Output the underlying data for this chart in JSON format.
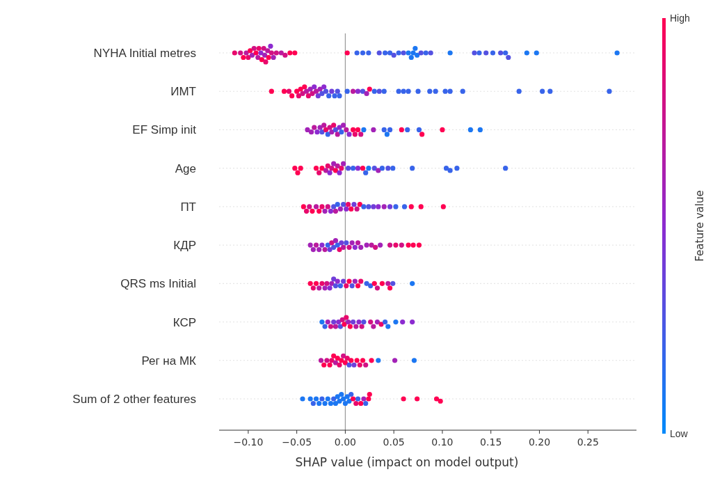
{
  "chart_data": {
    "type": "scatter",
    "orientation": "horizontal",
    "xlabel": "SHAP value (impact on model output)",
    "clabel": "Feature value",
    "categories": [
      "NYHA Initial metres",
      "ИМТ",
      "EF Simp init",
      "Age",
      "ПТ",
      "КДР",
      "QRS ms Initial",
      "КСР",
      "Рег на МК",
      "Sum of 2 other features"
    ],
    "xlim": [
      -0.13,
      0.3
    ],
    "xticks": [
      {
        "value": -0.1,
        "label": "−0.10"
      },
      {
        "value": -0.05,
        "label": "−0.05"
      },
      {
        "value": 0,
        "label": "0.00"
      },
      {
        "value": 0.05,
        "label": "0.05"
      },
      {
        "value": 0.1,
        "label": "0.10"
      },
      {
        "value": 0.15,
        "label": "0.15"
      },
      {
        "value": 0.2,
        "label": "0.20"
      },
      {
        "value": 0.25,
        "label": "0.25"
      }
    ],
    "ref_lines": [
      {
        "axis": "x",
        "value": 0,
        "color": "#999999"
      }
    ],
    "clim": [
      0,
      1
    ],
    "cticks": [
      {
        "value": 0,
        "label": "Low"
      },
      {
        "value": 1,
        "label": "High"
      }
    ],
    "grid": "y",
    "marker": "circle",
    "series": [
      {
        "x": [
          "NYHA Initial metres",
          "NYHA Initial metres",
          "NYHA Initial metres",
          "NYHA Initial metres",
          "NYHA Initial metres",
          "NYHA Initial metres",
          "NYHA Initial metres",
          "NYHA Initial metres",
          "NYHA Initial metres",
          "NYHA Initial metres",
          "NYHA Initial metres",
          "NYHA Initial metres",
          "NYHA Initial metres",
          "NYHA Initial metres",
          "NYHA Initial metres",
          "NYHA Initial metres",
          "NYHA Initial metres",
          "NYHA Initial metres",
          "NYHA Initial metres",
          "NYHA Initial metres",
          "NYHA Initial metres",
          "NYHA Initial metres",
          "NYHA Initial metres",
          "NYHA Initial metres",
          "NYHA Initial metres",
          "NYHA Initial metres",
          "NYHA Initial metres",
          "NYHA Initial metres",
          "NYHA Initial metres",
          "NYHA Initial metres",
          "NYHA Initial metres",
          "NYHA Initial metres",
          "NYHA Initial metres",
          "NYHA Initial metres",
          "NYHA Initial metres",
          "NYHA Initial metres",
          "NYHA Initial metres",
          "NYHA Initial metres",
          "NYHA Initial metres",
          "NYHA Initial metres",
          "NYHA Initial metres",
          "NYHA Initial metres",
          "NYHA Initial metres",
          "NYHA Initial metres",
          "NYHA Initial metres",
          "NYHA Initial metres",
          "NYHA Initial metres",
          "NYHA Initial metres",
          "NYHA Initial metres",
          "NYHA Initial metres",
          "NYHA Initial metres",
          "NYHA Initial metres",
          "NYHA Initial metres",
          "NYHA Initial metres",
          "NYHA Initial metres"
        ],
        "values": [
          -0.114,
          -0.108,
          -0.105,
          -0.102,
          -0.1,
          -0.098,
          -0.096,
          -0.094,
          -0.092,
          -0.09,
          -0.089,
          -0.087,
          -0.086,
          -0.084,
          -0.083,
          -0.082,
          -0.08,
          -0.079,
          -0.077,
          -0.076,
          -0.074,
          -0.071,
          -0.066,
          -0.062,
          -0.057,
          -0.052,
          0.002,
          0.012,
          0.018,
          0.024,
          0.035,
          0.041,
          0.046,
          0.05,
          0.055,
          0.06,
          0.065,
          0.068,
          0.07,
          0.072,
          0.074,
          0.078,
          0.083,
          0.088,
          0.108,
          0.133,
          0.138,
          0.145,
          0.152,
          0.16,
          0.165,
          0.168,
          0.187,
          0.197,
          0.28
        ],
        "colors": [
          "#e8096b",
          "#d11184",
          "#ff0052",
          "#ba1a9e",
          "#e8096b",
          "#ff0052",
          "#a322b7",
          "#d11184",
          "#ff0052",
          "#ba1a9e",
          "#e8096b",
          "#8c2bd0",
          "#ff0052",
          "#d11184",
          "#a322b7",
          "#e8096b",
          "#ba1a9e",
          "#ff0052",
          "#8c2bd0",
          "#d11184",
          "#a322b7",
          "#d11184",
          "#ba1a9e",
          "#d11184",
          "#ff0052",
          "#ff0052",
          "#ff0052",
          "#3864ea",
          "#3864ea",
          "#3864ea",
          "#5451e1",
          "#3864ea",
          "#3864ea",
          "#5451e1",
          "#3864ea",
          "#5451e1",
          "#1c77f2",
          "#1c77f2",
          "#1c77f2",
          "#1c77f2",
          "#1c77f2",
          "#5451e1",
          "#3864ea",
          "#5451e1",
          "#1c77f2",
          "#5451e1",
          "#3864ea",
          "#5451e1",
          "#3864ea",
          "#5451e1",
          "#3864ea",
          "#5451e1",
          "#1c77f2",
          "#1c77f2",
          "#1c77f2"
        ]
      },
      {
        "x": [
          "ИМТ",
          "ИМТ",
          "ИМТ",
          "ИМТ",
          "ИМТ",
          "ИМТ",
          "ИМТ",
          "ИМТ",
          "ИМТ",
          "ИМТ",
          "ИМТ",
          "ИМТ",
          "ИМТ",
          "ИМТ",
          "ИМТ",
          "ИМТ",
          "ИМТ",
          "ИМТ",
          "ИМТ",
          "ИМТ",
          "ИМТ",
          "ИМТ",
          "ИМТ",
          "ИМТ",
          "ИМТ",
          "ИМТ",
          "ИМТ",
          "ИМТ",
          "ИМТ",
          "ИМТ",
          "ИМТ",
          "ИМТ",
          "ИМТ",
          "ИМТ",
          "ИМТ",
          "ИМТ",
          "ИМТ",
          "ИМТ",
          "ИМТ",
          "ИМТ",
          "ИМТ",
          "ИМТ",
          "ИМТ",
          "ИМТ",
          "ИМТ",
          "ИМТ",
          "ИМТ"
        ],
        "values": [
          -0.076,
          -0.063,
          -0.058,
          -0.055,
          -0.05,
          -0.048,
          -0.046,
          -0.044,
          -0.042,
          -0.04,
          -0.038,
          -0.036,
          -0.034,
          -0.032,
          -0.03,
          -0.028,
          -0.026,
          -0.024,
          -0.022,
          -0.02,
          -0.017,
          -0.014,
          -0.011,
          -0.008,
          -0.006,
          0.002,
          0.008,
          0.013,
          0.018,
          0.022,
          0.025,
          0.03,
          0.035,
          0.04,
          0.055,
          0.06,
          0.065,
          0.075,
          0.087,
          0.093,
          0.103,
          0.108,
          0.121,
          0.179,
          0.203,
          0.211,
          0.272
        ],
        "colors": [
          "#ff0052",
          "#ff0052",
          "#e8096b",
          "#ff0052",
          "#ff0052",
          "#e8096b",
          "#ff0052",
          "#d11184",
          "#ff0052",
          "#ba1a9e",
          "#e8096b",
          "#a322b7",
          "#d11184",
          "#8c2bd0",
          "#ba1a9e",
          "#703ed9",
          "#a322b7",
          "#5451e1",
          "#8c2bd0",
          "#5451e1",
          "#3864ea",
          "#703ed9",
          "#3864ea",
          "#5451e1",
          "#3864ea",
          "#3864ea",
          "#ba1a9e",
          "#8c2bd0",
          "#5451e1",
          "#a322b7",
          "#ff0052",
          "#3864ea",
          "#5451e1",
          "#3864ea",
          "#3864ea",
          "#3864ea",
          "#3864ea",
          "#3864ea",
          "#3864ea",
          "#3864ea",
          "#3864ea",
          "#3864ea",
          "#3864ea",
          "#3864ea",
          "#3864ea",
          "#3864ea",
          "#3864ea"
        ]
      },
      {
        "x": [
          "EF Simp init",
          "EF Simp init",
          "EF Simp init",
          "EF Simp init",
          "EF Simp init",
          "EF Simp init",
          "EF Simp init",
          "EF Simp init",
          "EF Simp init",
          "EF Simp init",
          "EF Simp init",
          "EF Simp init",
          "EF Simp init",
          "EF Simp init",
          "EF Simp init",
          "EF Simp init",
          "EF Simp init",
          "EF Simp init",
          "EF Simp init",
          "EF Simp init",
          "EF Simp init",
          "EF Simp init",
          "EF Simp init",
          "EF Simp init",
          "EF Simp init",
          "EF Simp init",
          "EF Simp init",
          "EF Simp init",
          "EF Simp init",
          "EF Simp init",
          "EF Simp init",
          "EF Simp init",
          "EF Simp init",
          "EF Simp init",
          "EF Simp init"
        ],
        "values": [
          -0.039,
          -0.035,
          -0.032,
          -0.029,
          -0.026,
          -0.024,
          -0.022,
          -0.02,
          -0.018,
          -0.016,
          -0.014,
          -0.012,
          -0.01,
          -0.008,
          -0.006,
          -0.004,
          -0.002,
          0.001,
          0.004,
          0.008,
          0.01,
          0.013,
          0.016,
          0.019,
          0.029,
          0.04,
          0.043,
          0.046,
          0.058,
          0.064,
          0.076,
          0.079,
          0.1,
          0.129,
          0.139
        ],
        "colors": [
          "#a322b7",
          "#a322b7",
          "#ba1a9e",
          "#8c2bd0",
          "#a322b7",
          "#5451e1",
          "#ba1a9e",
          "#e8096b",
          "#3864ea",
          "#d11184",
          "#a322b7",
          "#e8096b",
          "#5451e1",
          "#ba1a9e",
          "#8c2bd0",
          "#3864ea",
          "#a322b7",
          "#ba1a9e",
          "#8c2bd0",
          "#ff0052",
          "#e8096b",
          "#ff0052",
          "#d11184",
          "#1c77f2",
          "#a322b7",
          "#3864ea",
          "#1c77f2",
          "#3864ea",
          "#ff0052",
          "#3864ea",
          "#3864ea",
          "#ff0052",
          "#ff0052",
          "#1c77f2",
          "#1c77f2"
        ]
      },
      {
        "x": [
          "Age",
          "Age",
          "Age",
          "Age",
          "Age",
          "Age",
          "Age",
          "Age",
          "Age",
          "Age",
          "Age",
          "Age",
          "Age",
          "Age",
          "Age",
          "Age",
          "Age",
          "Age",
          "Age",
          "Age",
          "Age",
          "Age",
          "Age",
          "Age",
          "Age",
          "Age",
          "Age",
          "Age",
          "Age",
          "Age",
          "Age",
          "Age"
        ],
        "values": [
          -0.052,
          -0.049,
          -0.046,
          -0.03,
          -0.027,
          -0.024,
          -0.02,
          -0.018,
          -0.016,
          -0.014,
          -0.012,
          -0.01,
          -0.008,
          -0.006,
          -0.004,
          -0.002,
          0.003,
          0.008,
          0.013,
          0.018,
          0.021,
          0.024,
          0.03,
          0.034,
          0.038,
          0.044,
          0.049,
          0.069,
          0.104,
          0.108,
          0.115,
          0.165
        ],
        "colors": [
          "#ff0052",
          "#ff0052",
          "#ff0052",
          "#ff0052",
          "#e8096b",
          "#ff0052",
          "#ba1a9e",
          "#e8096b",
          "#8c2bd0",
          "#d11184",
          "#a322b7",
          "#ff0052",
          "#ba1a9e",
          "#8c2bd0",
          "#e8096b",
          "#a322b7",
          "#5451e1",
          "#3864ea",
          "#8c2bd0",
          "#ff0052",
          "#3864ea",
          "#1c77f2",
          "#5451e1",
          "#a322b7",
          "#3864ea",
          "#5451e1",
          "#3864ea",
          "#3864ea",
          "#3864ea",
          "#3864ea",
          "#3864ea",
          "#3864ea"
        ]
      },
      {
        "x": [
          "ПТ",
          "ПТ",
          "ПТ",
          "ПТ",
          "ПТ",
          "ПТ",
          "ПТ",
          "ПТ",
          "ПТ",
          "ПТ",
          "ПТ",
          "ПТ",
          "ПТ",
          "ПТ",
          "ПТ",
          "ПТ",
          "ПТ",
          "ПТ",
          "ПТ",
          "ПТ",
          "ПТ",
          "ПТ",
          "ПТ",
          "ПТ",
          "ПТ",
          "ПТ",
          "ПТ",
          "ПТ",
          "ПТ",
          "ПТ",
          "ПТ",
          "ПТ"
        ],
        "values": [
          -0.043,
          -0.04,
          -0.037,
          -0.034,
          -0.03,
          -0.027,
          -0.024,
          -0.021,
          -0.018,
          -0.015,
          -0.012,
          -0.01,
          -0.008,
          -0.005,
          -0.002,
          0.001,
          0.003,
          0.006,
          0.009,
          0.012,
          0.015,
          0.019,
          0.024,
          0.029,
          0.034,
          0.04,
          0.046,
          0.052,
          0.061,
          0.068,
          0.078,
          0.101
        ],
        "colors": [
          "#ff0052",
          "#e8096b",
          "#d11184",
          "#ff0052",
          "#ba1a9e",
          "#ff0052",
          "#e8096b",
          "#a322b7",
          "#d11184",
          "#8c2bd0",
          "#5451e1",
          "#ba1a9e",
          "#3864ea",
          "#a322b7",
          "#5451e1",
          "#8c2bd0",
          "#e8096b",
          "#ff0052",
          "#703ed9",
          "#d11184",
          "#ff0052",
          "#3864ea",
          "#5451e1",
          "#703ed9",
          "#8c2bd0",
          "#a322b7",
          "#703ed9",
          "#3864ea",
          "#3864ea",
          "#ff0052",
          "#ff0052",
          "#ff0052"
        ]
      },
      {
        "x": [
          "КДР",
          "КДР",
          "КДР",
          "КДР",
          "КДР",
          "КДР",
          "КДР",
          "КДР",
          "КДР",
          "КДР",
          "КДР",
          "КДР",
          "КДР",
          "КДР",
          "КДР",
          "КДР",
          "КДР",
          "КДР",
          "КДР",
          "КДР",
          "КДР",
          "КДР",
          "КДР",
          "КДР",
          "КДР",
          "КДР",
          "КДР",
          "КДР",
          "КДР",
          "КДР",
          "КДР"
        ],
        "values": [
          -0.036,
          -0.033,
          -0.03,
          -0.027,
          -0.024,
          -0.021,
          -0.018,
          -0.016,
          -0.014,
          -0.012,
          -0.01,
          -0.008,
          -0.006,
          -0.004,
          -0.002,
          0.001,
          0.004,
          0.007,
          0.01,
          0.013,
          0.016,
          0.022,
          0.027,
          0.031,
          0.036,
          0.046,
          0.052,
          0.058,
          0.065,
          0.07,
          0.076
        ],
        "colors": [
          "#a322b7",
          "#a322b7",
          "#ba1a9e",
          "#a322b7",
          "#8c2bd0",
          "#ba1a9e",
          "#3864ea",
          "#703ed9",
          "#d11184",
          "#5451e1",
          "#a322b7",
          "#3864ea",
          "#e8096b",
          "#703ed9",
          "#ba1a9e",
          "#5451e1",
          "#d11184",
          "#a322b7",
          "#8c2bd0",
          "#ba1a9e",
          "#a322b7",
          "#a322b7",
          "#ba1a9e",
          "#d11184",
          "#a322b7",
          "#d11184",
          "#e8096b",
          "#d11184",
          "#ff0052",
          "#ff0052",
          "#ff0052"
        ]
      },
      {
        "x": [
          "QRS ms Initial",
          "QRS ms Initial",
          "QRS ms Initial",
          "QRS ms Initial",
          "QRS ms Initial",
          "QRS ms Initial",
          "QRS ms Initial",
          "QRS ms Initial",
          "QRS ms Initial",
          "QRS ms Initial",
          "QRS ms Initial",
          "QRS ms Initial",
          "QRS ms Initial",
          "QRS ms Initial",
          "QRS ms Initial",
          "QRS ms Initial",
          "QRS ms Initial",
          "QRS ms Initial",
          "QRS ms Initial",
          "QRS ms Initial",
          "QRS ms Initial",
          "QRS ms Initial",
          "QRS ms Initial",
          "QRS ms Initial",
          "QRS ms Initial",
          "QRS ms Initial",
          "QRS ms Initial",
          "QRS ms Initial",
          "QRS ms Initial"
        ],
        "values": [
          -0.036,
          -0.033,
          -0.03,
          -0.027,
          -0.024,
          -0.021,
          -0.019,
          -0.016,
          -0.014,
          -0.012,
          -0.01,
          -0.008,
          -0.005,
          -0.002,
          0.001,
          0.004,
          0.007,
          0.01,
          0.013,
          0.016,
          0.022,
          0.026,
          0.03,
          0.033,
          0.038,
          0.044,
          0.046,
          0.049,
          0.069
        ],
        "colors": [
          "#ff0052",
          "#e8096b",
          "#ff0052",
          "#ba1a9e",
          "#e8096b",
          "#a322b7",
          "#d11184",
          "#8c2bd0",
          "#a322b7",
          "#703ed9",
          "#5451e1",
          "#8c2bd0",
          "#3864ea",
          "#703ed9",
          "#e8096b",
          "#ff0052",
          "#5451e1",
          "#a322b7",
          "#ff0052",
          "#e8096b",
          "#3864ea",
          "#3864ea",
          "#ff0052",
          "#d11184",
          "#ff0052",
          "#ba1a9e",
          "#ff0052",
          "#5451e1",
          "#1c77f2"
        ]
      },
      {
        "x": [
          "КСР",
          "КСР",
          "КСР",
          "КСР",
          "КСР",
          "КСР",
          "КСР",
          "КСР",
          "КСР",
          "КСР",
          "КСР",
          "КСР",
          "КСР",
          "КСР",
          "КСР",
          "КСР",
          "КСР",
          "КСР",
          "КСР",
          "КСР",
          "КСР",
          "КСР",
          "КСР",
          "КСР",
          "КСР",
          "КСР",
          "КСР"
        ],
        "values": [
          -0.024,
          -0.021,
          -0.018,
          -0.015,
          -0.012,
          -0.01,
          -0.007,
          -0.005,
          -0.003,
          -0.001,
          0.001,
          0.003,
          0.005,
          0.008,
          0.011,
          0.014,
          0.017,
          0.019,
          0.026,
          0.029,
          0.033,
          0.037,
          0.041,
          0.044,
          0.052,
          0.059,
          0.069
        ],
        "colors": [
          "#1c77f2",
          "#3864ea",
          "#a322b7",
          "#d11184",
          "#703ed9",
          "#ba1a9e",
          "#8c2bd0",
          "#5451e1",
          "#d11184",
          "#ff0052",
          "#e8096b",
          "#a322b7",
          "#ff0052",
          "#703ed9",
          "#ba1a9e",
          "#8c2bd0",
          "#d11184",
          "#5451e1",
          "#d11184",
          "#ba1a9e",
          "#a322b7",
          "#e8096b",
          "#3864ea",
          "#1c77f2",
          "#1c77f2",
          "#8c2bd0",
          "#8c2bd0"
        ]
      },
      {
        "x": [
          "Рег на МК",
          "Рег на МК",
          "Рег на МК",
          "Рег на МК",
          "Рег на МК",
          "Рег на МК",
          "Рег на МК",
          "Рег на МК",
          "Рег на МК",
          "Рег на МК",
          "Рег на МК",
          "Рег на МК",
          "Рег на МК",
          "Рег на МК",
          "Рег на МК",
          "Рег на МК",
          "Рег на МК",
          "Рег на МК",
          "Рег на МК",
          "Рег на МК",
          "Рег на МК",
          "Рег на МК",
          "Рег на МК",
          "Рег на МК"
        ],
        "values": [
          -0.025,
          -0.022,
          -0.019,
          -0.016,
          -0.014,
          -0.012,
          -0.01,
          -0.008,
          -0.006,
          -0.004,
          -0.002,
          0,
          0.002,
          0.004,
          0.006,
          0.009,
          0.012,
          0.015,
          0.018,
          0.021,
          0.027,
          0.034,
          0.051,
          0.071
        ],
        "colors": [
          "#ba1a9e",
          "#ff0052",
          "#d11184",
          "#ff0052",
          "#e8096b",
          "#ff0052",
          "#ba1a9e",
          "#ff0052",
          "#e8096b",
          "#ff0052",
          "#d11184",
          "#ff0052",
          "#e8096b",
          "#5451e1",
          "#ff0052",
          "#703ed9",
          "#ff0052",
          "#e8096b",
          "#ff0052",
          "#d11184",
          "#ff0052",
          "#1c77f2",
          "#a322b7",
          "#1c77f2"
        ]
      },
      {
        "x": [
          "Sum of 2 other features",
          "Sum of 2 other features",
          "Sum of 2 other features",
          "Sum of 2 other features",
          "Sum of 2 other features",
          "Sum of 2 other features",
          "Sum of 2 other features",
          "Sum of 2 other features",
          "Sum of 2 other features",
          "Sum of 2 other features",
          "Sum of 2 other features",
          "Sum of 2 other features",
          "Sum of 2 other features",
          "Sum of 2 other features",
          "Sum of 2 other features",
          "Sum of 2 other features",
          "Sum of 2 other features",
          "Sum of 2 other features",
          "Sum of 2 other features",
          "Sum of 2 other features",
          "Sum of 2 other features",
          "Sum of 2 other features",
          "Sum of 2 other features",
          "Sum of 2 other features",
          "Sum of 2 other features",
          "Sum of 2 other features",
          "Sum of 2 other features",
          "Sum of 2 other features",
          "Sum of 2 other features",
          "Sum of 2 other features",
          "Sum of 2 other features"
        ],
        "values": [
          -0.044,
          -0.036,
          -0.033,
          -0.03,
          -0.027,
          -0.024,
          -0.021,
          -0.018,
          -0.015,
          -0.012,
          -0.01,
          -0.008,
          -0.006,
          -0.004,
          -0.002,
          0,
          0.002,
          0.004,
          0.006,
          0.008,
          0.011,
          0.013,
          0.016,
          0.019,
          0.021,
          0.024,
          0.025,
          0.06,
          0.074,
          0.094,
          0.098
        ],
        "colors": [
          "#1c77f2",
          "#1c77f2",
          "#3864ea",
          "#1c77f2",
          "#1c77f2",
          "#3864ea",
          "#1c77f2",
          "#1c77f2",
          "#1c77f2",
          "#3864ea",
          "#1c77f2",
          "#1c77f2",
          "#1c77f2",
          "#1c77f2",
          "#1c77f2",
          "#1c77f2",
          "#1c77f2",
          "#1c77f2",
          "#3864ea",
          "#ff0052",
          "#e8096b",
          "#3864ea",
          "#ff0052",
          "#a322b7",
          "#3864ea",
          "#ff0052",
          "#ff0052",
          "#ff0052",
          "#ff0052",
          "#ff0052",
          "#ff0052"
        ]
      }
    ]
  }
}
